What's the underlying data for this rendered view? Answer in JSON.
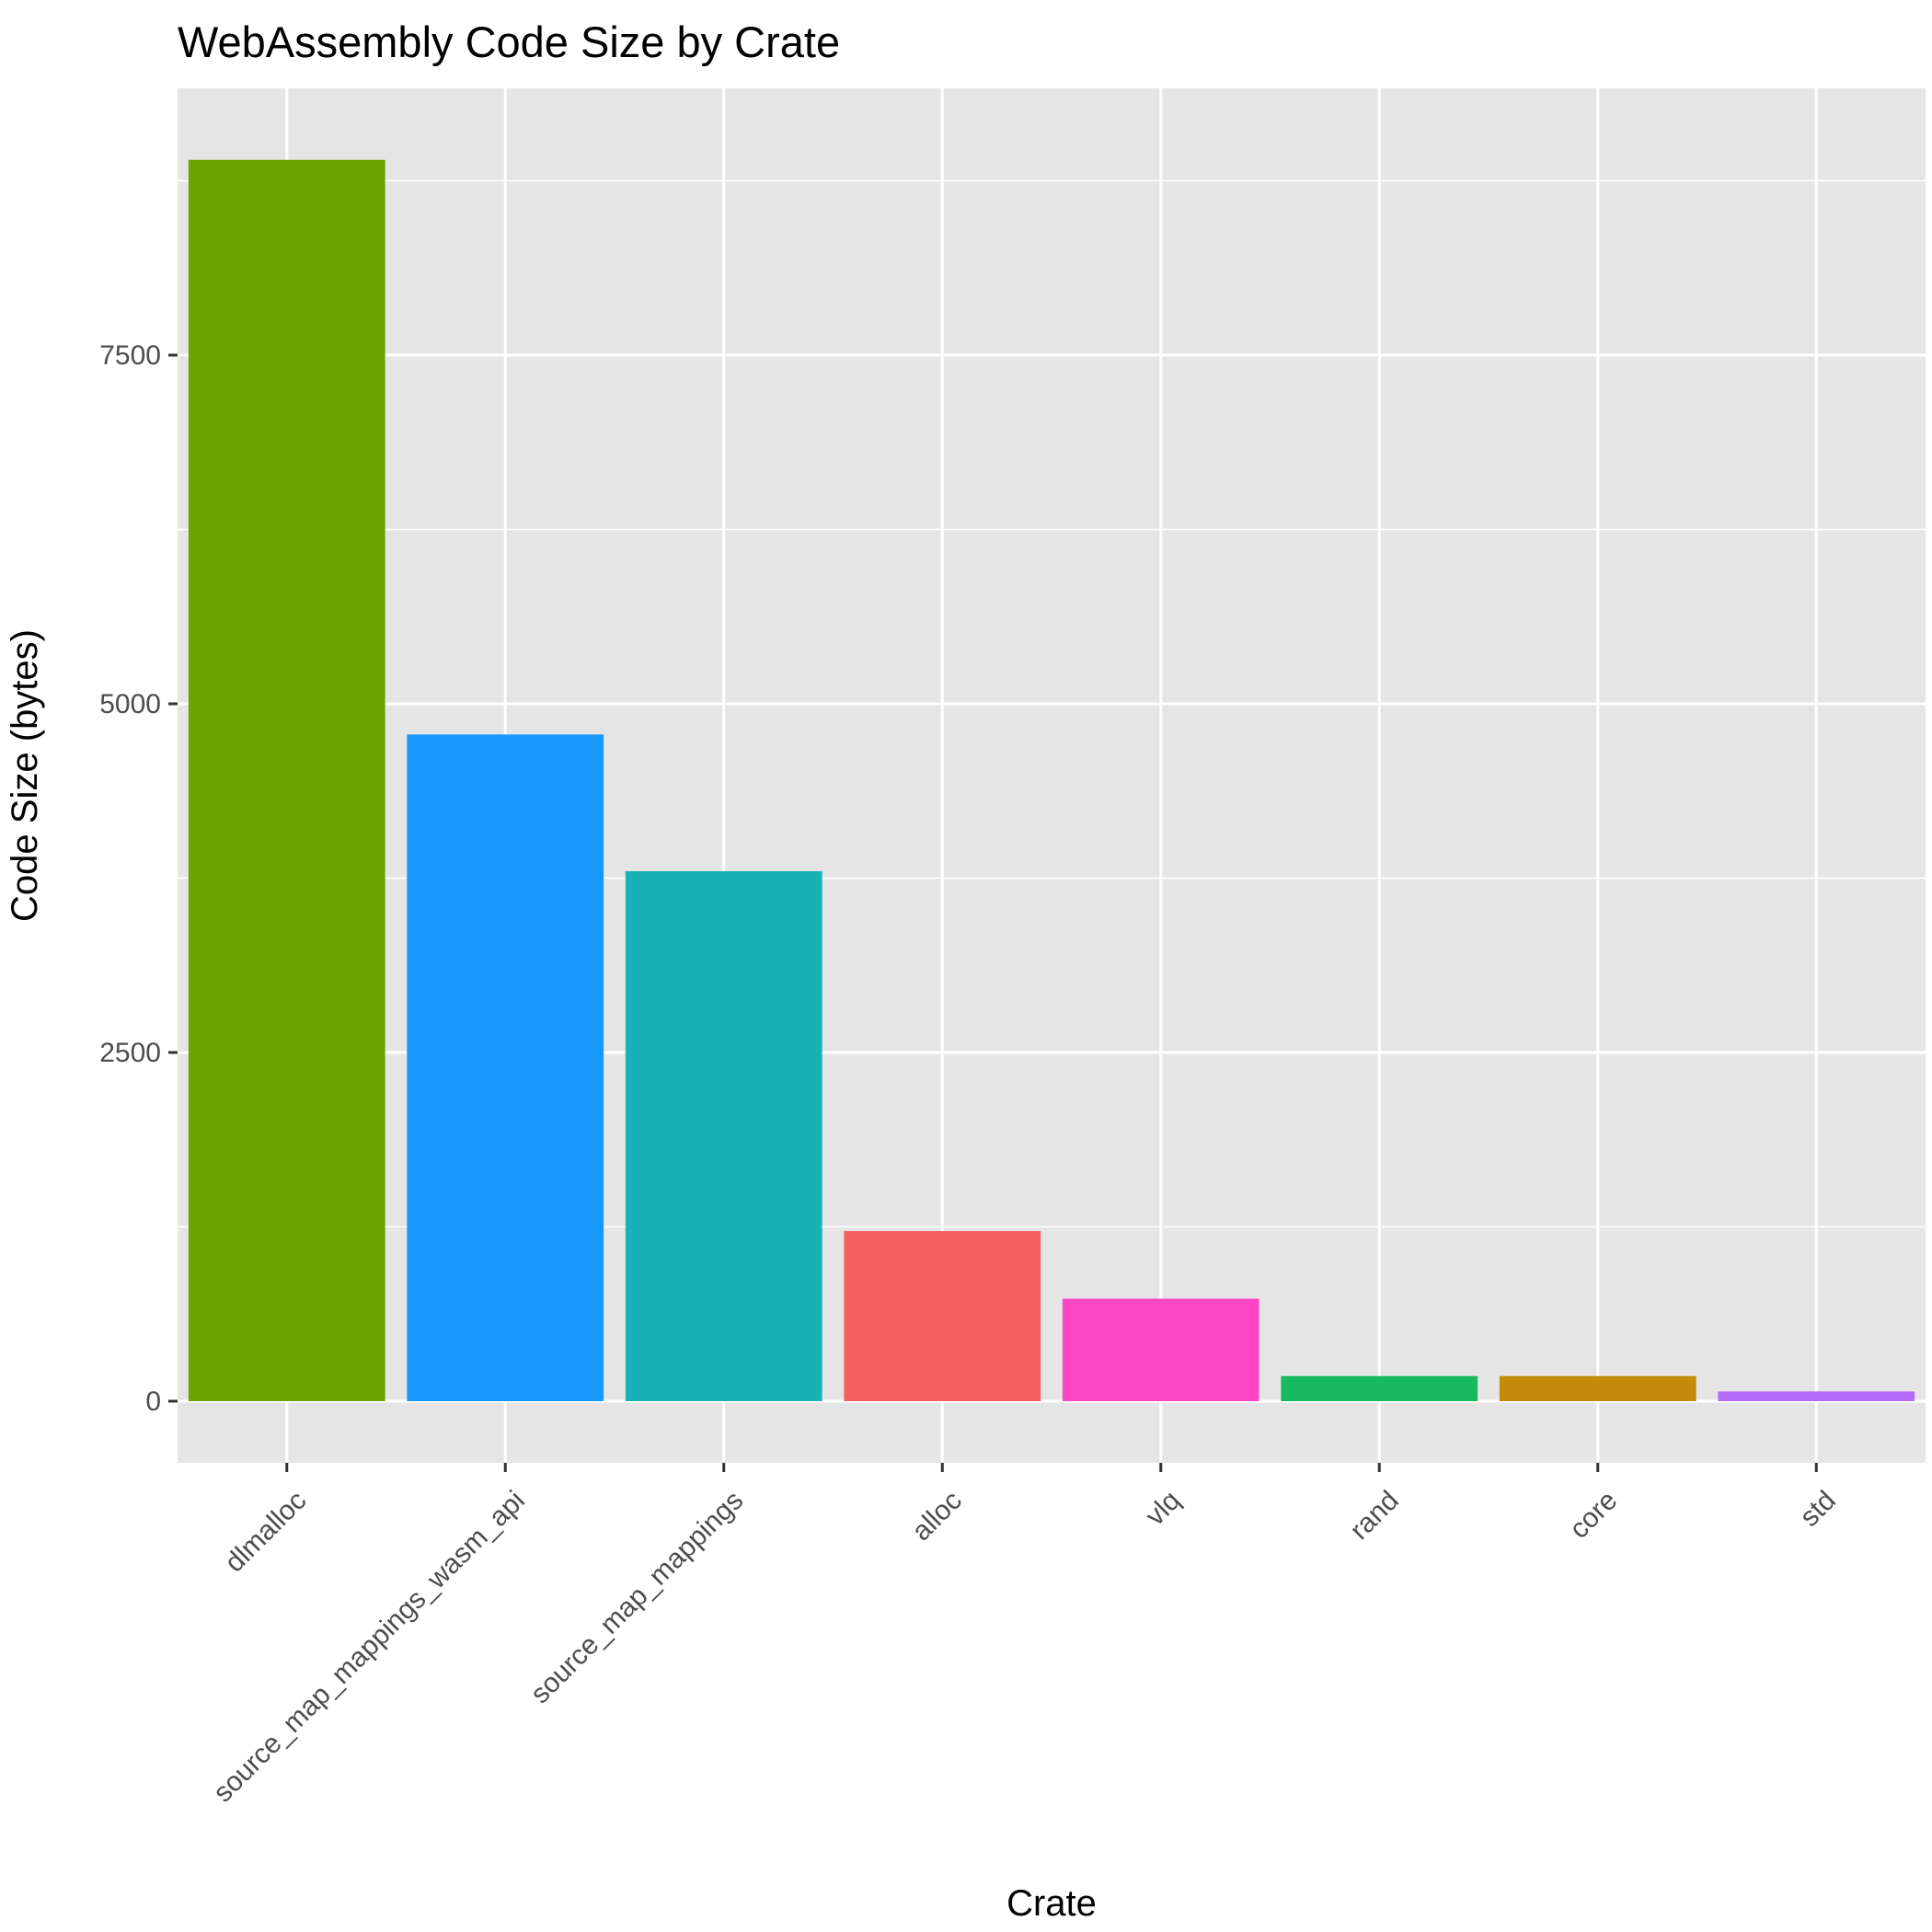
{
  "chart_data": {
    "type": "bar",
    "title": "WebAssembly Code Size by Crate",
    "xlabel": "Crate",
    "ylabel": "Code Size (bytes)",
    "categories": [
      "dlmalloc",
      "source_map_mappings_wasm_api",
      "source_map_mappings",
      "alloc",
      "vlq",
      "rand",
      "core",
      "std"
    ],
    "values": [
      8900,
      4780,
      3800,
      1220,
      735,
      180,
      180,
      70
    ],
    "colors": [
      "#6BA300",
      "#1597FC",
      "#18B2B6",
      "#F5615E",
      "#FD47C2",
      "#17B85E",
      "#C28B09",
      "#B769FA"
    ],
    "yticks": [
      0,
      2500,
      5000,
      7500
    ],
    "ytick_labels": [
      "0",
      "2500",
      "5000",
      "7500"
    ],
    "ylim": [
      -450,
      9345
    ],
    "grid": true,
    "legend": "none"
  }
}
